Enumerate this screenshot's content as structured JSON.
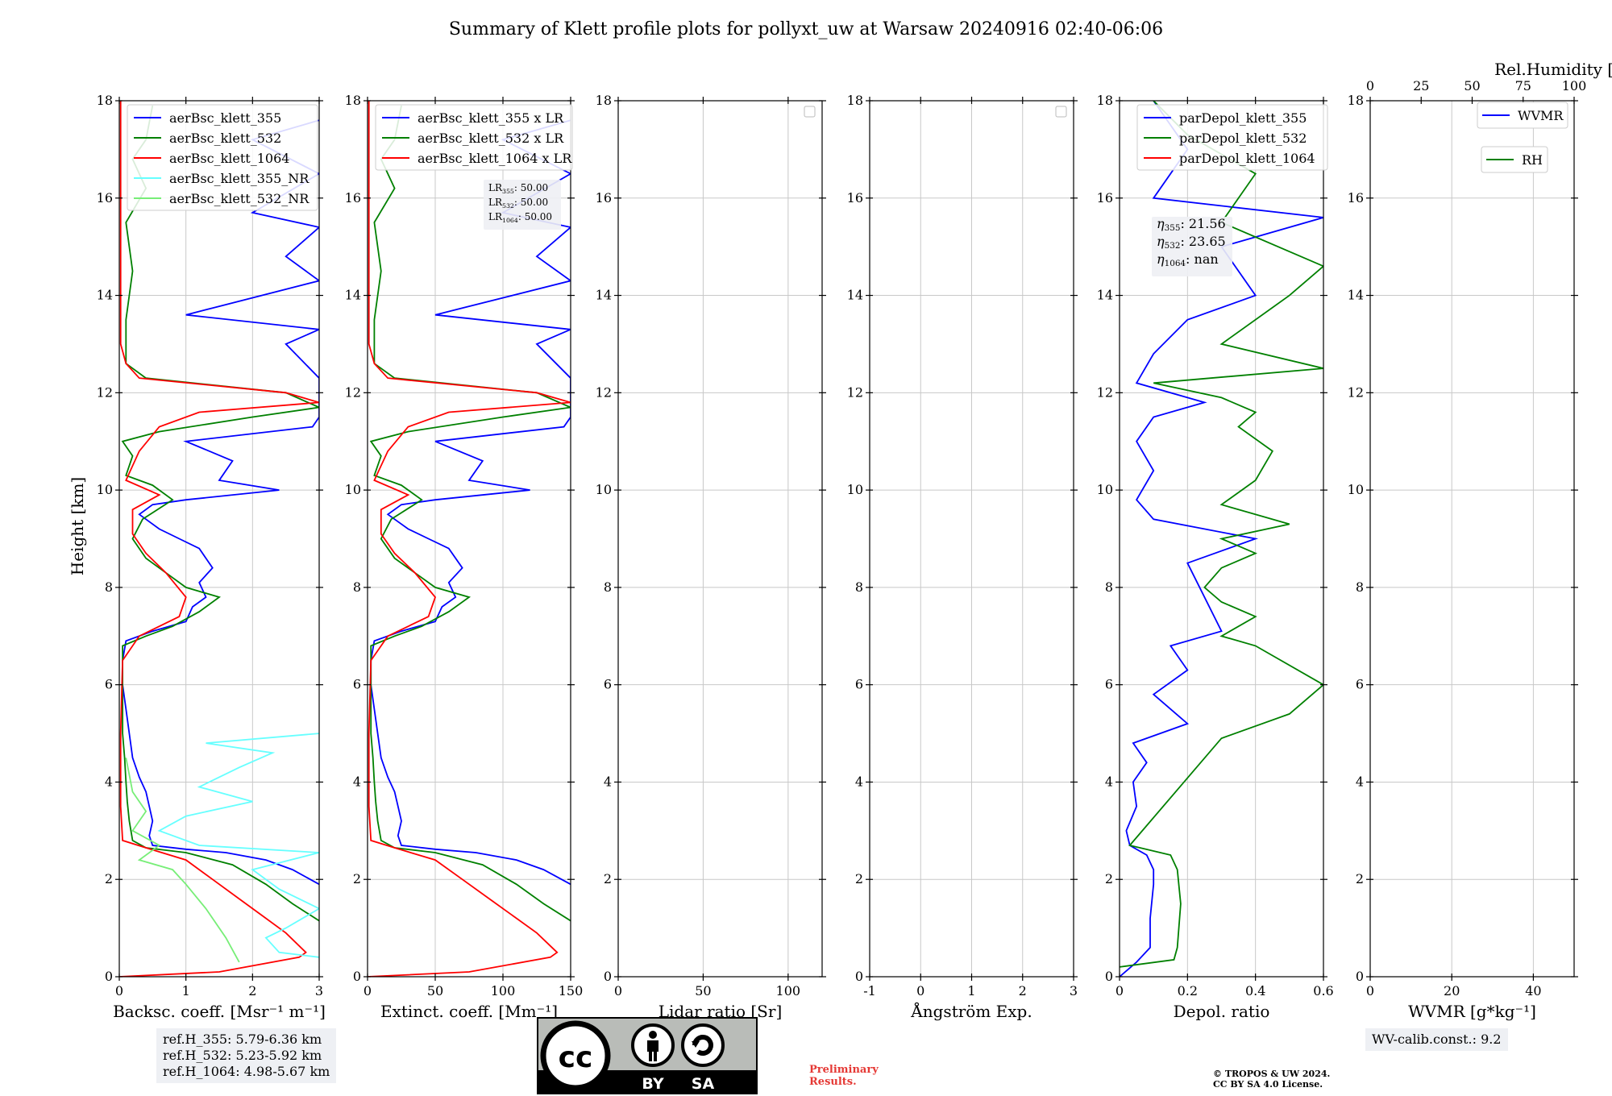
{
  "title": "Summary of Klett profile plots for pollyxt_uw at Warsaw 20240916 02:40-06:06",
  "ylabel": "Height [km]",
  "colors": {
    "c355": "#0000ff",
    "c532": "#008000",
    "c1064": "#ff0000",
    "c355nr": "#66ffff",
    "c532nr": "#77ee77",
    "grid": "#c8c8c8"
  },
  "chart_data": [
    {
      "id": "backscatter",
      "type": "line",
      "xlabel": "Backsc. coeff. [Msr⁻¹ m⁻¹]",
      "xlim": [
        0,
        3
      ],
      "ylim": [
        0,
        18
      ],
      "xticks": [
        0,
        1,
        2,
        3
      ],
      "yticks": [
        0,
        2,
        4,
        6,
        8,
        10,
        12,
        14,
        16,
        18
      ],
      "legend": [
        "aerBsc_klett_355",
        "aerBsc_klett_532",
        "aerBsc_klett_1064",
        "aerBsc_klett_355_NR",
        "aerBsc_klett_532_NR"
      ],
      "series": [
        {
          "name": "aerBsc_klett_355",
          "color": "c355",
          "points": [
            [
              3.0,
              1.9
            ],
            [
              2.6,
              2.2
            ],
            [
              2.2,
              2.4
            ],
            [
              1.6,
              2.55
            ],
            [
              1.0,
              2.62
            ],
            [
              0.5,
              2.7
            ],
            [
              0.45,
              2.9
            ],
            [
              0.5,
              3.2
            ],
            [
              0.45,
              3.5
            ],
            [
              0.4,
              3.8
            ],
            [
              0.3,
              4.1
            ],
            [
              0.2,
              4.5
            ],
            [
              0.15,
              5.0
            ],
            [
              0.1,
              5.5
            ],
            [
              0.05,
              6.0
            ],
            [
              0.05,
              6.5
            ],
            [
              0.1,
              6.9
            ],
            [
              0.5,
              7.1
            ],
            [
              1.0,
              7.3
            ],
            [
              1.1,
              7.6
            ],
            [
              1.3,
              7.8
            ],
            [
              1.2,
              8.1
            ],
            [
              1.4,
              8.4
            ],
            [
              1.2,
              8.8
            ],
            [
              0.9,
              9.0
            ],
            [
              0.6,
              9.2
            ],
            [
              0.3,
              9.5
            ],
            [
              0.5,
              9.7
            ],
            [
              1.0,
              9.8
            ],
            [
              2.4,
              10.0
            ],
            [
              1.5,
              10.2
            ],
            [
              1.7,
              10.6
            ],
            [
              1.0,
              11.0
            ],
            [
              2.9,
              11.3
            ],
            [
              3.0,
              11.5
            ],
            [
              3.0,
              12.3
            ],
            [
              2.5,
              13.0
            ],
            [
              3.0,
              13.3
            ],
            [
              1.0,
              13.6
            ],
            [
              3.0,
              14.3
            ],
            [
              2.5,
              14.8
            ],
            [
              3.0,
              15.4
            ],
            [
              2.0,
              15.7
            ],
            [
              3.0,
              16.5
            ],
            [
              2.0,
              17.2
            ],
            [
              3.0,
              17.6
            ]
          ]
        },
        {
          "name": "aerBsc_klett_532",
          "color": "c532",
          "points": [
            [
              3.0,
              1.15
            ],
            [
              2.6,
              1.5
            ],
            [
              2.2,
              1.9
            ],
            [
              1.7,
              2.3
            ],
            [
              1.0,
              2.55
            ],
            [
              0.4,
              2.65
            ],
            [
              0.2,
              2.8
            ],
            [
              0.15,
              3.2
            ],
            [
              0.12,
              3.6
            ],
            [
              0.1,
              4.0
            ],
            [
              0.08,
              4.5
            ],
            [
              0.05,
              5.0
            ],
            [
              0.05,
              6.0
            ],
            [
              0.05,
              6.8
            ],
            [
              0.4,
              7.0
            ],
            [
              0.8,
              7.2
            ],
            [
              1.2,
              7.5
            ],
            [
              1.5,
              7.8
            ],
            [
              1.0,
              8.0
            ],
            [
              0.7,
              8.3
            ],
            [
              0.4,
              8.6
            ],
            [
              0.2,
              9.0
            ],
            [
              0.35,
              9.4
            ],
            [
              0.8,
              9.8
            ],
            [
              0.5,
              10.1
            ],
            [
              0.1,
              10.3
            ],
            [
              0.2,
              10.7
            ],
            [
              0.05,
              11.0
            ],
            [
              0.6,
              11.2
            ],
            [
              2.0,
              11.5
            ],
            [
              3.0,
              11.7
            ],
            [
              2.5,
              12.0
            ],
            [
              0.4,
              12.3
            ],
            [
              0.1,
              12.6
            ],
            [
              0.1,
              13.5
            ],
            [
              0.2,
              14.5
            ],
            [
              0.1,
              15.5
            ],
            [
              0.4,
              16.2
            ],
            [
              0.2,
              16.8
            ],
            [
              0.4,
              17.2
            ],
            [
              0.5,
              17.9
            ]
          ]
        },
        {
          "name": "aerBsc_klett_1064",
          "color": "c1064",
          "points": [
            [
              0.0,
              0.0
            ],
            [
              1.5,
              0.1
            ],
            [
              2.7,
              0.4
            ],
            [
              2.8,
              0.5
            ],
            [
              2.5,
              0.9
            ],
            [
              2.2,
              1.2
            ],
            [
              1.8,
              1.6
            ],
            [
              1.4,
              2.0
            ],
            [
              1.0,
              2.4
            ],
            [
              0.4,
              2.65
            ],
            [
              0.05,
              2.8
            ],
            [
              0.02,
              3.5
            ],
            [
              0.02,
              5.0
            ],
            [
              0.05,
              6.5
            ],
            [
              0.3,
              7.0
            ],
            [
              0.9,
              7.4
            ],
            [
              1.0,
              7.8
            ],
            [
              0.7,
              8.3
            ],
            [
              0.4,
              8.7
            ],
            [
              0.2,
              9.1
            ],
            [
              0.2,
              9.6
            ],
            [
              0.6,
              9.9
            ],
            [
              0.1,
              10.2
            ],
            [
              0.3,
              10.8
            ],
            [
              0.6,
              11.3
            ],
            [
              1.2,
              11.6
            ],
            [
              3.0,
              11.8
            ],
            [
              2.5,
              12.0
            ],
            [
              0.3,
              12.3
            ],
            [
              0.1,
              12.6
            ],
            [
              0.02,
              13.0
            ],
            [
              0.02,
              18.0
            ]
          ]
        },
        {
          "name": "aerBsc_klett_355_NR",
          "color": "c355nr",
          "points": [
            [
              3.0,
              0.4
            ],
            [
              2.4,
              0.5
            ],
            [
              2.2,
              0.8
            ],
            [
              2.5,
              1.0
            ],
            [
              3.0,
              1.4
            ],
            [
              2.4,
              1.8
            ],
            [
              2.0,
              2.2
            ],
            [
              3.0,
              2.55
            ],
            [
              1.2,
              2.7
            ],
            [
              0.6,
              3.0
            ],
            [
              1.0,
              3.3
            ],
            [
              2.0,
              3.6
            ],
            [
              1.2,
              3.9
            ],
            [
              1.8,
              4.3
            ],
            [
              2.3,
              4.6
            ],
            [
              1.3,
              4.8
            ],
            [
              3.0,
              5.0
            ]
          ]
        },
        {
          "name": "aerBsc_klett_532_NR",
          "color": "c532nr",
          "points": [
            [
              1.8,
              0.3
            ],
            [
              1.6,
              0.8
            ],
            [
              1.3,
              1.4
            ],
            [
              1.0,
              1.9
            ],
            [
              0.8,
              2.2
            ],
            [
              0.3,
              2.4
            ],
            [
              0.6,
              2.7
            ],
            [
              0.2,
              3.0
            ],
            [
              0.4,
              3.4
            ],
            [
              0.2,
              3.8
            ],
            [
              0.1,
              4.5
            ]
          ]
        }
      ]
    },
    {
      "id": "extinction",
      "type": "line",
      "xlabel": "Extinct. coeff. [Mm⁻¹]",
      "xlim": [
        0,
        150
      ],
      "ylim": [
        0,
        18
      ],
      "xticks": [
        0,
        50,
        100,
        150
      ],
      "yticks": [
        0,
        2,
        4,
        6,
        8,
        10,
        12,
        14,
        16,
        18
      ],
      "legend": [
        "aerBsc_klett_355 x LR",
        "aerBsc_klett_532 x LR",
        "aerBsc_klett_1064 x LR"
      ],
      "annotations": [
        {
          "sub": "355",
          "text": ": 50.00"
        },
        {
          "sub": "532",
          "text": ": 50.00"
        },
        {
          "sub": "1064",
          "text": ": 50.00"
        }
      ],
      "series_from": "backscatter",
      "scale": 50
    },
    {
      "id": "lidar_ratio",
      "type": "line",
      "xlabel": "Lidar ratio [Sr]",
      "xlim": [
        0,
        120
      ],
      "ylim": [
        0,
        18
      ],
      "xticks": [
        0,
        50,
        100
      ],
      "yticks": [
        0,
        2,
        4,
        6,
        8,
        10,
        12,
        14,
        16,
        18
      ],
      "series": []
    },
    {
      "id": "angstrom",
      "type": "line",
      "xlabel": "Ångström Exp.",
      "xlim": [
        -1,
        3
      ],
      "ylim": [
        0,
        18
      ],
      "xticks": [
        -1,
        0,
        1,
        2,
        3
      ],
      "yticks": [
        0,
        2,
        4,
        6,
        8,
        10,
        12,
        14,
        16,
        18
      ],
      "series": []
    },
    {
      "id": "depol",
      "type": "line",
      "xlabel": "Depol. ratio",
      "xlim": [
        0,
        0.6
      ],
      "ylim": [
        0,
        18
      ],
      "xticks": [
        0.0,
        0.2,
        0.4,
        0.6
      ],
      "yticks": [
        0,
        2,
        4,
        6,
        8,
        10,
        12,
        14,
        16,
        18
      ],
      "legend": [
        "parDepol_klett_355",
        "parDepol_klett_532",
        "parDepol_klett_1064"
      ],
      "annotations": [
        {
          "sub": "355",
          "text": ": 21.56"
        },
        {
          "sub": "532",
          "text": ": 23.65"
        },
        {
          "sub": "1064",
          "text": ": nan"
        }
      ],
      "series": [
        {
          "name": "parDepol_klett_355",
          "color": "c355",
          "points": [
            [
              0.0,
              0.0
            ],
            [
              0.05,
              0.3
            ],
            [
              0.09,
              0.6
            ],
            [
              0.09,
              1.2
            ],
            [
              0.1,
              1.9
            ],
            [
              0.1,
              2.2
            ],
            [
              0.08,
              2.5
            ],
            [
              0.03,
              2.7
            ],
            [
              0.02,
              3.0
            ],
            [
              0.05,
              3.5
            ],
            [
              0.04,
              4.0
            ],
            [
              0.08,
              4.4
            ],
            [
              0.04,
              4.8
            ],
            [
              0.2,
              5.2
            ],
            [
              0.1,
              5.8
            ],
            [
              0.2,
              6.3
            ],
            [
              0.15,
              6.8
            ],
            [
              0.3,
              7.1
            ],
            [
              0.2,
              8.5
            ],
            [
              0.4,
              9.0
            ],
            [
              0.1,
              9.4
            ],
            [
              0.05,
              9.8
            ],
            [
              0.1,
              10.4
            ],
            [
              0.05,
              11.0
            ],
            [
              0.1,
              11.5
            ],
            [
              0.25,
              11.8
            ],
            [
              0.05,
              12.2
            ],
            [
              0.1,
              12.8
            ],
            [
              0.2,
              13.5
            ],
            [
              0.4,
              14.0
            ],
            [
              0.3,
              15.0
            ],
            [
              0.6,
              15.6
            ],
            [
              0.1,
              16.0
            ],
            [
              0.2,
              17.0
            ],
            [
              0.1,
              18.0
            ]
          ]
        },
        {
          "name": "parDepol_klett_532",
          "color": "c532",
          "points": [
            [
              0.0,
              0.2
            ],
            [
              0.16,
              0.35
            ],
            [
              0.17,
              0.6
            ],
            [
              0.18,
              1.5
            ],
            [
              0.17,
              2.2
            ],
            [
              0.15,
              2.5
            ],
            [
              0.03,
              2.7
            ],
            [
              0.3,
              4.9
            ],
            [
              0.5,
              5.4
            ],
            [
              0.6,
              6.0
            ],
            [
              0.4,
              6.8
            ],
            [
              0.3,
              7.0
            ],
            [
              0.4,
              7.4
            ],
            [
              0.3,
              7.7
            ],
            [
              0.25,
              8.0
            ],
            [
              0.3,
              8.4
            ],
            [
              0.4,
              8.7
            ],
            [
              0.3,
              9.0
            ],
            [
              0.5,
              9.3
            ],
            [
              0.3,
              9.7
            ],
            [
              0.4,
              10.2
            ],
            [
              0.45,
              10.8
            ],
            [
              0.35,
              11.3
            ],
            [
              0.4,
              11.6
            ],
            [
              0.3,
              11.9
            ],
            [
              0.1,
              12.2
            ],
            [
              0.6,
              12.5
            ],
            [
              0.3,
              13.0
            ],
            [
              0.5,
              14.0
            ],
            [
              0.6,
              14.6
            ],
            [
              0.3,
              15.5
            ],
            [
              0.4,
              16.5
            ],
            [
              0.2,
              17.3
            ],
            [
              0.1,
              18.0
            ]
          ]
        }
      ]
    },
    {
      "id": "wvmr",
      "type": "line",
      "xlabel": "WVMR [g*kg⁻¹]",
      "top_xlabel": "Rel.Humidity [%]",
      "xlim": [
        0,
        50
      ],
      "ylim": [
        0,
        18
      ],
      "xticks": [
        0,
        20,
        40
      ],
      "top_xticks": [
        0,
        25,
        50,
        75,
        100
      ],
      "yticks": [
        0,
        2,
        4,
        6,
        8,
        10,
        12,
        14,
        16,
        18
      ],
      "legend": [
        "WVMR",
        "RH"
      ],
      "series": []
    }
  ],
  "ref_heights": [
    "ref.H_355: 5.79-6.36 km",
    "ref.H_532: 5.23-5.92 km",
    "ref.H_1064: 4.98-5.67 km"
  ],
  "wv_calib": "WV-calib.const.: 9.2",
  "license_badge": {
    "by": "BY",
    "sa": "SA"
  },
  "preliminary": [
    "Preliminary",
    "Results."
  ],
  "copyright": [
    "© TROPOS & UW 2024.",
    "CC BY SA 4.0 License."
  ],
  "eta_symbol": "η",
  "lr_symbol": "LR"
}
